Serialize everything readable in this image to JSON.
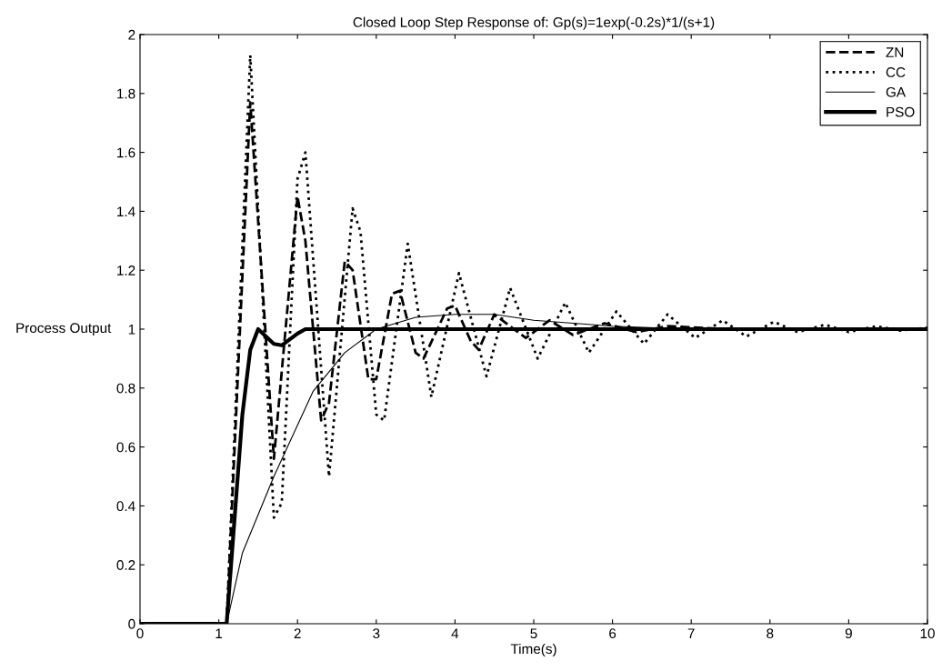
{
  "chart_data": {
    "type": "line",
    "title": "Closed Loop Step Response of: Gp(s)=1exp(-0.2s)*1/(s+1)",
    "xlabel": "Time(s)",
    "ylabel": "Process Output",
    "xlim": [
      0,
      10
    ],
    "ylim": [
      0,
      2
    ],
    "xticks": [
      0,
      1,
      2,
      3,
      4,
      5,
      6,
      7,
      8,
      9,
      10
    ],
    "yticks": [
      0,
      0.2,
      0.4,
      0.6,
      0.8,
      1,
      1.2,
      1.4,
      1.6,
      1.8,
      2
    ],
    "grid": false,
    "legend": "top right",
    "marker": "none",
    "series": [
      {
        "name": "ZN",
        "color": "#000000",
        "line_style": "dashed",
        "x": [
          0,
          1.1,
          1.4,
          1.7,
          2.0,
          2.1,
          2.3,
          2.4,
          2.6,
          2.7,
          2.9,
          3.0,
          3.2,
          3.3,
          3.5,
          3.6,
          3.9,
          4.0,
          4.2,
          4.3,
          4.5,
          4.9,
          5.2,
          5.5,
          5.9,
          6.3,
          6.7,
          7.5,
          10
        ],
        "values": [
          0,
          0,
          1.77,
          0.56,
          1.45,
          1.3,
          0.69,
          0.75,
          1.23,
          1.2,
          0.83,
          0.83,
          1.12,
          1.13,
          0.92,
          0.9,
          1.07,
          1.08,
          0.96,
          0.93,
          1.05,
          0.97,
          1.03,
          0.98,
          1.02,
          0.99,
          1.01,
          1.0,
          1.0
        ]
      },
      {
        "name": "CC",
        "color": "#000000",
        "line_style": "dotted",
        "x": [
          0,
          1.1,
          1.4,
          1.7,
          1.8,
          2.0,
          2.1,
          2.4,
          2.7,
          2.8,
          3.0,
          3.1,
          3.4,
          3.7,
          4.05,
          4.4,
          4.7,
          5.05,
          5.4,
          5.7,
          6.05,
          6.4,
          6.7,
          7.05,
          7.4,
          7.7,
          8.05,
          8.35,
          8.7,
          9.0,
          9.35,
          9.65,
          10
        ],
        "values": [
          0,
          0,
          1.93,
          0.36,
          0.41,
          1.51,
          1.6,
          0.5,
          1.41,
          1.33,
          0.71,
          0.69,
          1.29,
          0.77,
          1.19,
          0.84,
          1.14,
          0.9,
          1.09,
          0.92,
          1.06,
          0.95,
          1.05,
          0.97,
          1.03,
          0.975,
          1.025,
          0.99,
          1.015,
          0.99,
          1.01,
          0.995,
          1.005
        ]
      },
      {
        "name": "GA",
        "color": "#000000",
        "line_style": "solid",
        "x": [
          0,
          1.1,
          1.3,
          1.7,
          2.2,
          2.6,
          3.0,
          3.5,
          4.0,
          4.5,
          5.0,
          5.5,
          6.0,
          7.0,
          10
        ],
        "values": [
          0,
          0,
          0.24,
          0.5,
          0.79,
          0.92,
          1.0,
          1.04,
          1.05,
          1.05,
          1.03,
          1.02,
          1.01,
          1.0,
          1.0
        ]
      },
      {
        "name": "PSO",
        "color": "#000000",
        "line_style": "solid",
        "x": [
          0,
          1.1,
          1.3,
          1.4,
          1.5,
          1.7,
          1.8,
          2.0,
          2.1,
          10
        ],
        "values": [
          0,
          0,
          0.71,
          0.93,
          1.0,
          0.95,
          0.945,
          0.985,
          1.0,
          1.0
        ]
      }
    ]
  }
}
